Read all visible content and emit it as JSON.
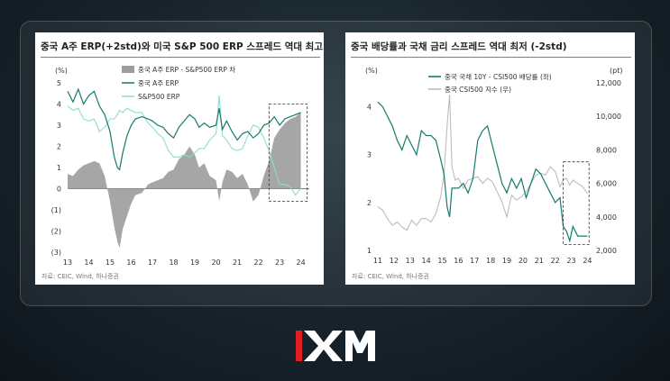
{
  "brand": {
    "name": "XM"
  },
  "colors": {
    "teal_dark": "#137a6c",
    "teal_light": "#8fdccd",
    "gray_bar": "#9c9c9c",
    "gray_line": "#bdbdbd",
    "accent_rule": "#2aa39a"
  },
  "charts": [
    {
      "title": "중국 A주 ERP(+2std)와 미국 S&P 500 ERP 스프레드 역대 최고",
      "source": "자료: CEIC, Wind, 하나증권",
      "chart_data": {
        "type": "line",
        "yunit": "(%)",
        "ylim": [
          -3,
          5
        ],
        "yticks": [
          "5",
          "4",
          "3",
          "2",
          "1",
          "0",
          "(1)",
          "(2)",
          "(3)"
        ],
        "xticks": [
          "13",
          "14",
          "15",
          "16",
          "17",
          "18",
          "19",
          "20",
          "21",
          "22",
          "23",
          "24"
        ],
        "legend_position": "top-right",
        "annotation": "dashed box highlighting 2022.5–2024",
        "series": [
          {
            "name": "중국 A주 ERP - S&P500 ERP 차",
            "style": "area",
            "x": [
              2013.0,
              2013.25,
              2013.5,
              2013.75,
              2014.0,
              2014.25,
              2014.5,
              2014.75,
              2015.0,
              2015.2,
              2015.35,
              2015.45,
              2015.6,
              2015.8,
              2016.0,
              2016.2,
              2016.5,
              2016.8,
              2017.0,
              2017.25,
              2017.5,
              2017.75,
              2018.0,
              2018.25,
              2018.5,
              2018.75,
              2019.0,
              2019.2,
              2019.45,
              2019.7,
              2020.0,
              2020.15,
              2020.3,
              2020.5,
              2020.75,
              2021.0,
              2021.25,
              2021.5,
              2021.75,
              2022.0,
              2022.25,
              2022.5,
              2022.75,
              2023.0,
              2023.25,
              2023.5,
              2023.75,
              2024.0
            ],
            "values": [
              0.7,
              0.6,
              0.9,
              1.1,
              1.2,
              1.3,
              1.2,
              0.6,
              -0.6,
              -1.8,
              -2.5,
              -2.8,
              -1.9,
              -1.3,
              -0.7,
              -0.3,
              -0.2,
              0.2,
              0.3,
              0.4,
              0.5,
              0.8,
              0.9,
              1.4,
              1.6,
              2.0,
              1.6,
              1.0,
              1.2,
              0.6,
              0.4,
              -0.6,
              0.3,
              0.9,
              0.8,
              0.5,
              0.7,
              0.2,
              -0.6,
              -0.3,
              0.6,
              1.3,
              2.4,
              2.8,
              3.1,
              3.3,
              3.4,
              3.6
            ]
          },
          {
            "name": "중국 A주 ERP",
            "style": "line",
            "x": [
              2013.0,
              2013.25,
              2013.5,
              2013.75,
              2014.0,
              2014.25,
              2014.5,
              2014.75,
              2015.0,
              2015.2,
              2015.35,
              2015.45,
              2015.6,
              2015.8,
              2016.0,
              2016.2,
              2016.5,
              2016.8,
              2017.0,
              2017.25,
              2017.5,
              2017.75,
              2018.0,
              2018.25,
              2018.5,
              2018.75,
              2019.0,
              2019.2,
              2019.45,
              2019.7,
              2020.0,
              2020.15,
              2020.3,
              2020.5,
              2020.75,
              2021.0,
              2021.25,
              2021.5,
              2021.75,
              2022.0,
              2022.25,
              2022.5,
              2022.75,
              2023.0,
              2023.25,
              2023.5,
              2023.75,
              2024.0
            ],
            "values": [
              4.6,
              4.1,
              4.7,
              4.0,
              4.4,
              4.6,
              3.9,
              3.5,
              2.7,
              1.5,
              1.0,
              0.9,
              1.7,
              2.5,
              3.0,
              3.3,
              3.4,
              3.3,
              3.2,
              3.0,
              2.9,
              2.6,
              2.4,
              2.9,
              3.2,
              3.5,
              3.3,
              2.9,
              3.1,
              2.9,
              3.0,
              3.8,
              2.8,
              3.2,
              2.7,
              2.3,
              2.6,
              2.7,
              2.4,
              2.6,
              3.0,
              3.1,
              3.4,
              3.0,
              3.3,
              3.4,
              3.5,
              3.6
            ]
          },
          {
            "name": "S&P500 ERP",
            "style": "line",
            "x": [
              2013.0,
              2013.25,
              2013.5,
              2013.75,
              2014.0,
              2014.25,
              2014.5,
              2014.75,
              2015.0,
              2015.2,
              2015.35,
              2015.45,
              2015.6,
              2015.8,
              2016.0,
              2016.2,
              2016.5,
              2016.8,
              2017.0,
              2017.25,
              2017.5,
              2017.75,
              2018.0,
              2018.25,
              2018.5,
              2018.75,
              2019.0,
              2019.2,
              2019.45,
              2019.7,
              2020.0,
              2020.15,
              2020.3,
              2020.5,
              2020.75,
              2021.0,
              2021.25,
              2021.5,
              2021.75,
              2022.0,
              2022.25,
              2022.5,
              2022.75,
              2023.0,
              2023.25,
              2023.5,
              2023.75,
              2024.0
            ],
            "values": [
              3.9,
              3.7,
              3.8,
              3.3,
              3.2,
              3.3,
              2.7,
              2.9,
              3.3,
              3.3,
              3.5,
              3.7,
              3.6,
              3.8,
              3.7,
              3.6,
              3.6,
              3.1,
              2.9,
              2.6,
              2.4,
              1.8,
              1.5,
              1.5,
              1.6,
              1.5,
              1.7,
              1.9,
              1.9,
              2.3,
              2.6,
              4.4,
              2.5,
              2.3,
              1.9,
              1.8,
              1.9,
              2.5,
              3.0,
              2.9,
              2.4,
              1.8,
              1.0,
              0.2,
              0.2,
              0.1,
              -0.3,
              0.0
            ]
          }
        ]
      }
    },
    {
      "title": "중국 배당률과 국채 금리 스프레드 역대 최저 (-2std)",
      "source": "자료: CEIC, Wind, 하나증권",
      "chart_data": {
        "type": "line",
        "yunit_left": "(%)",
        "yunit_right": "(pt)",
        "ylim_left": [
          1,
          4.5
        ],
        "ylim_right": [
          2000,
          12000
        ],
        "yticks_left": [
          "4",
          "3",
          "2",
          "1"
        ],
        "yticks_right": [
          "12,000",
          "10,000",
          "8,000",
          "6,000",
          "4,000",
          "2,000"
        ],
        "xticks": [
          "11",
          "12",
          "13",
          "14",
          "15",
          "16",
          "17",
          "18",
          "19",
          "20",
          "21",
          "22",
          "23",
          "24"
        ],
        "legend_position": "top-center",
        "annotation": "dashed box highlighting 2022.5–2024",
        "series": [
          {
            "name": "중국 국채 10Y - CSI500 배당률 (좌)",
            "axis": "left",
            "x": [
              2011.0,
              2011.3,
              2011.6,
              2011.9,
              2012.2,
              2012.5,
              2012.8,
              2013.1,
              2013.4,
              2013.7,
              2014.0,
              2014.3,
              2014.6,
              2014.9,
              2015.1,
              2015.3,
              2015.45,
              2015.6,
              2015.8,
              2016.0,
              2016.3,
              2016.6,
              2016.9,
              2017.2,
              2017.5,
              2017.8,
              2018.1,
              2018.4,
              2018.7,
              2019.0,
              2019.3,
              2019.6,
              2019.9,
              2020.2,
              2020.5,
              2020.8,
              2021.1,
              2021.4,
              2021.7,
              2022.0,
              2022.3,
              2022.5,
              2022.7,
              2022.9,
              2023.1,
              2023.4,
              2023.7,
              2024.0
            ],
            "values": [
              4.1,
              4.0,
              3.8,
              3.6,
              3.3,
              3.1,
              3.4,
              3.2,
              3.0,
              3.5,
              3.4,
              3.4,
              3.3,
              2.9,
              2.6,
              1.9,
              1.7,
              2.3,
              2.3,
              2.3,
              2.4,
              2.2,
              2.5,
              3.3,
              3.5,
              3.6,
              3.2,
              2.8,
              2.4,
              2.2,
              2.5,
              2.3,
              2.5,
              2.1,
              2.4,
              2.7,
              2.6,
              2.4,
              2.2,
              2.0,
              2.1,
              1.5,
              1.4,
              1.2,
              1.5,
              1.3,
              1.3,
              1.3
            ]
          },
          {
            "name": "중국 CSI500 지수 (우)",
            "axis": "right",
            "x": [
              2011.0,
              2011.3,
              2011.6,
              2011.9,
              2012.2,
              2012.5,
              2012.8,
              2013.1,
              2013.4,
              2013.7,
              2014.0,
              2014.3,
              2014.6,
              2014.9,
              2015.1,
              2015.3,
              2015.45,
              2015.6,
              2015.8,
              2016.0,
              2016.3,
              2016.6,
              2016.9,
              2017.2,
              2017.5,
              2017.8,
              2018.1,
              2018.4,
              2018.7,
              2019.0,
              2019.3,
              2019.6,
              2019.9,
              2020.2,
              2020.5,
              2020.8,
              2021.1,
              2021.4,
              2021.7,
              2022.0,
              2022.3,
              2022.5,
              2022.7,
              2022.9,
              2023.1,
              2023.4,
              2023.7,
              2024.0
            ],
            "values": [
              4600,
              4400,
              3900,
              3500,
              3700,
              3400,
              3200,
              3800,
              3500,
              3900,
              3900,
              3700,
              4200,
              5200,
              6500,
              9500,
              11300,
              7000,
              6200,
              6300,
              5700,
              6200,
              6300,
              6400,
              6000,
              6300,
              6100,
              5500,
              4900,
              4000,
              5300,
              5000,
              5200,
              5500,
              6000,
              6500,
              6600,
              6500,
              7000,
              6700,
              5800,
              6200,
              6300,
              5900,
              6200,
              6000,
              5800,
              5400
            ]
          }
        ]
      }
    }
  ]
}
